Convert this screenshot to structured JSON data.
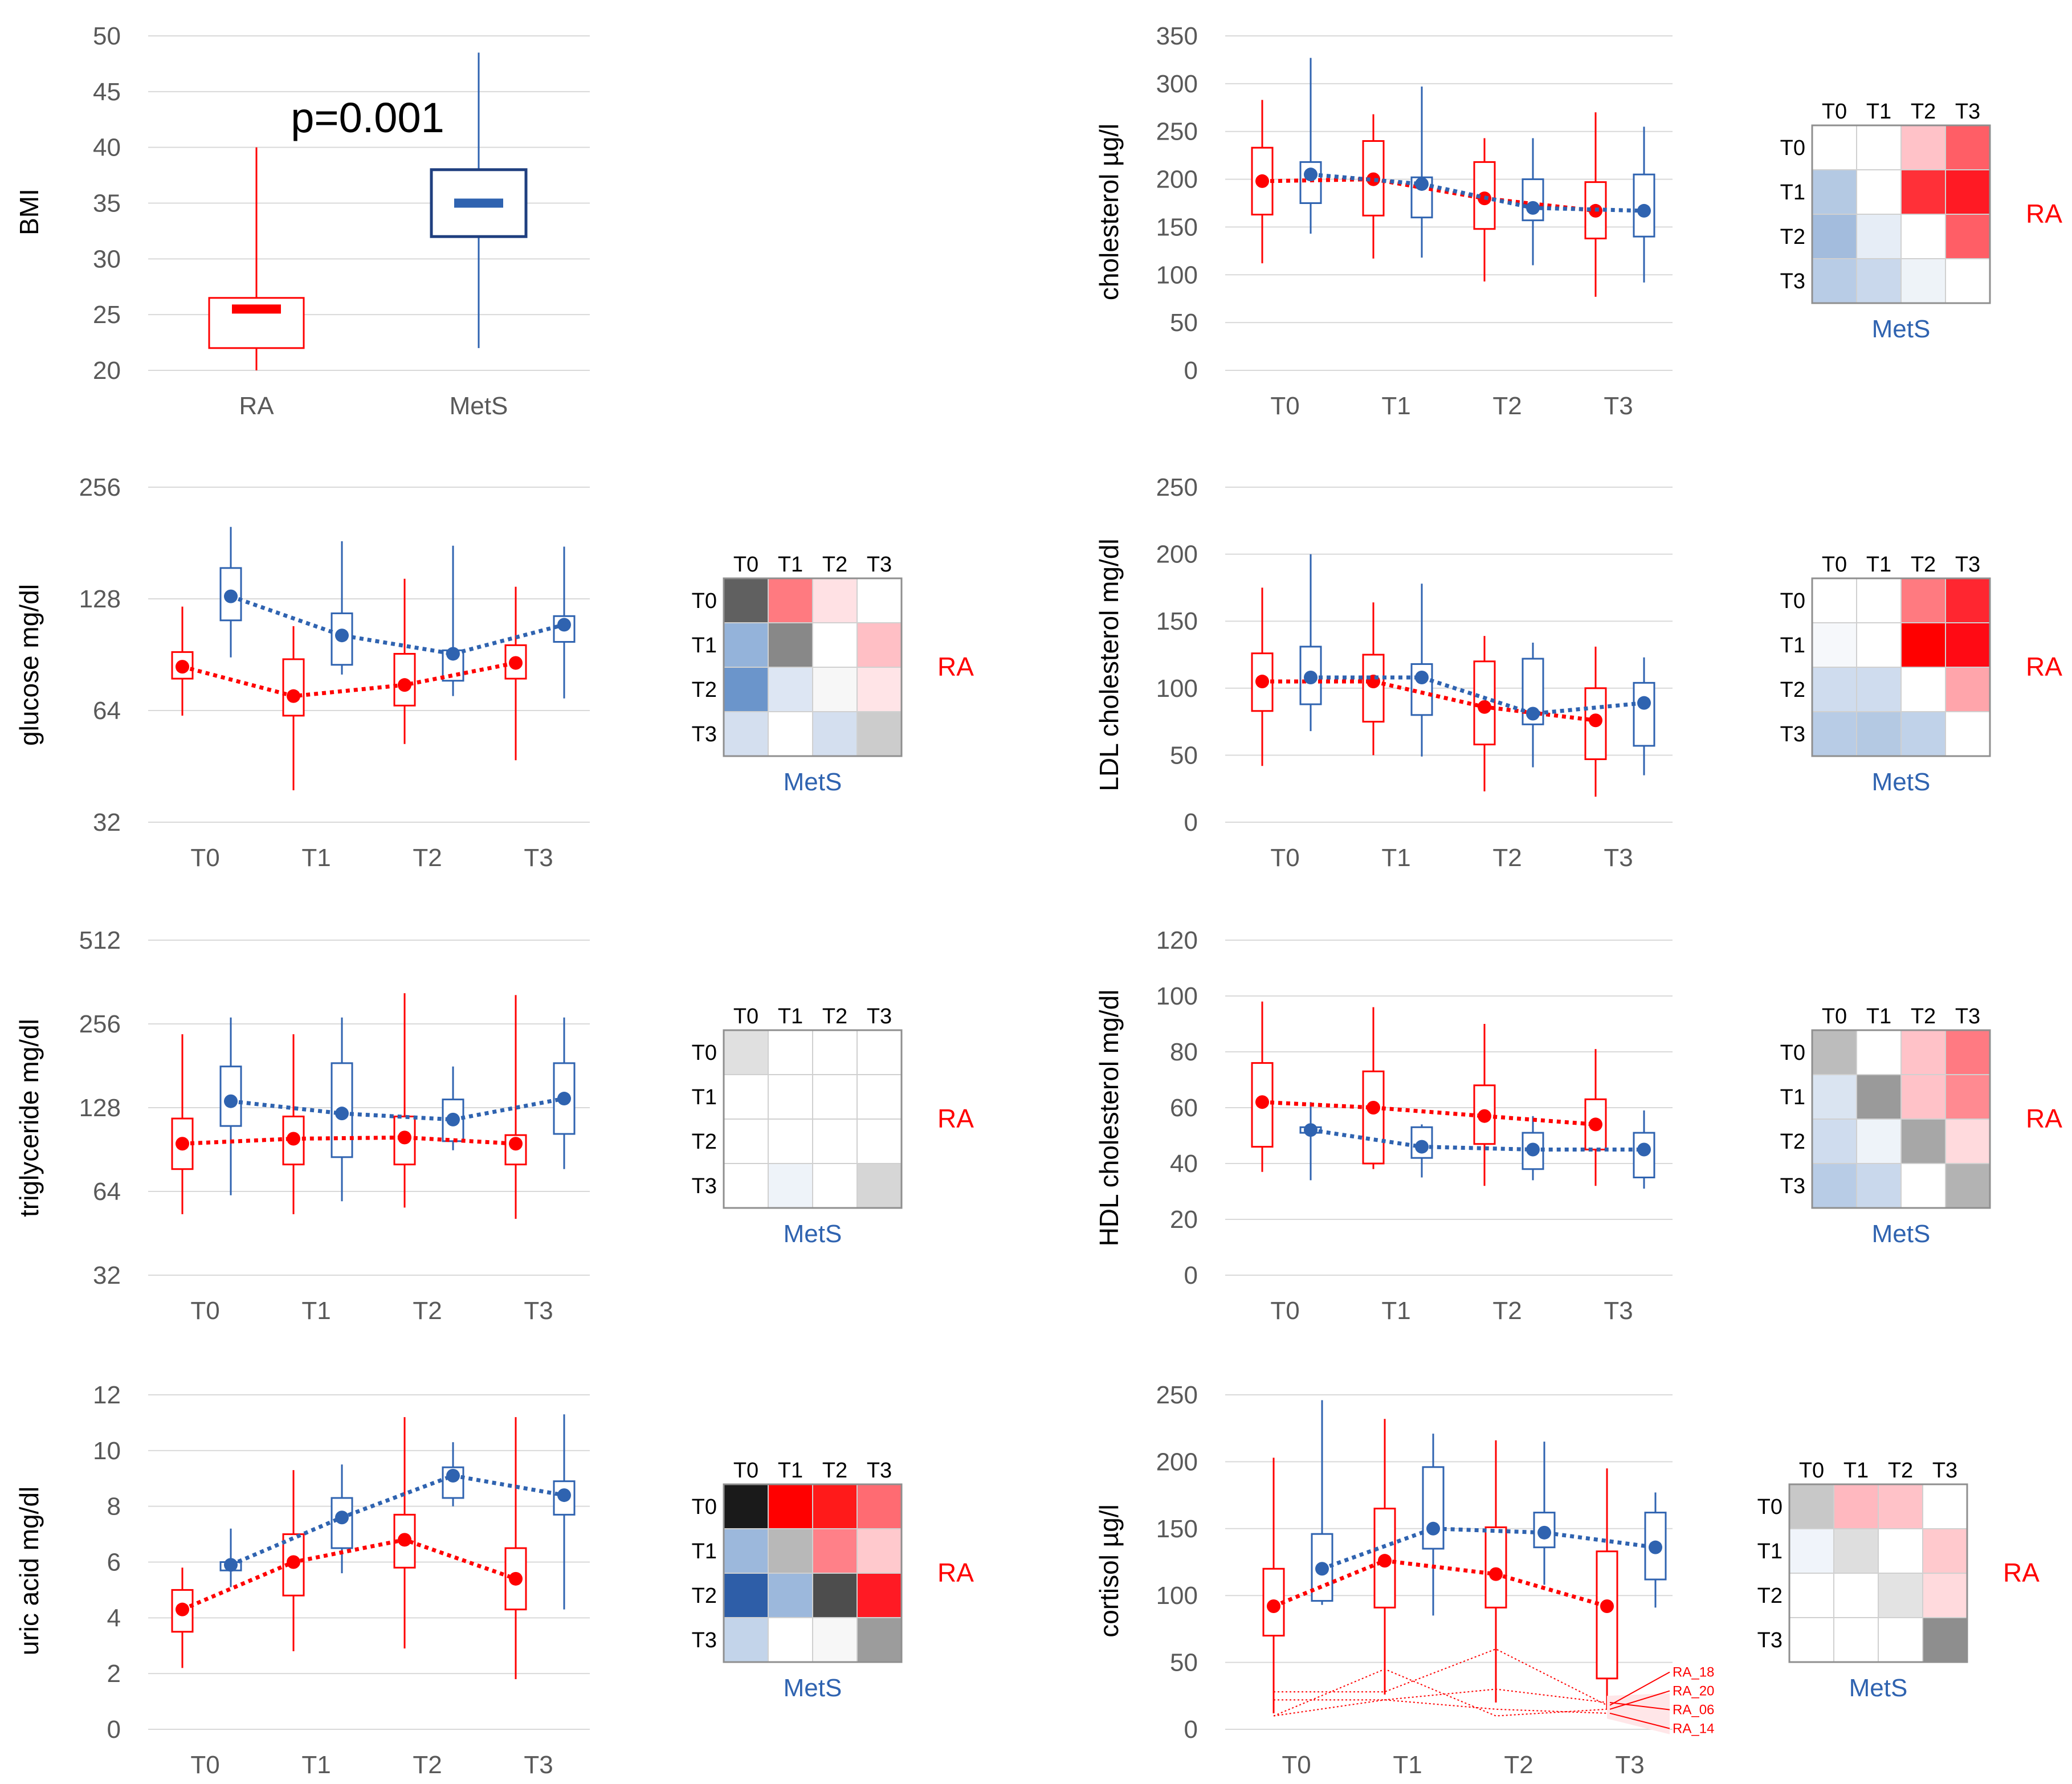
{
  "colors": {
    "ra": "#ff0000",
    "mets": "#2f63b0",
    "mets_dark": "#1f3f7f",
    "grid": "#d9d9d9",
    "tick_text": "#595959"
  },
  "chart_data": [
    {
      "id": "bmi",
      "type": "box",
      "ylabel": "BMI",
      "scale": "linear",
      "ylim": [
        20,
        50
      ],
      "yticks": [
        20,
        25,
        30,
        35,
        40,
        45,
        50
      ],
      "categories": [
        "RA",
        "MetS"
      ],
      "annotation": "p=0.001",
      "boxes": [
        {
          "group": "RA",
          "min": 20,
          "q1": 22,
          "median": 25.5,
          "q3": 26.5,
          "max": 40
        },
        {
          "group": "MetS",
          "min": 22,
          "q1": 32,
          "median": 35,
          "q3": 38,
          "max": 48.5
        }
      ]
    },
    {
      "id": "cholesterol",
      "type": "box-line",
      "ylabel": "cholesterol µg/l",
      "scale": "linear",
      "ylim": [
        0,
        350
      ],
      "yticks": [
        0,
        50,
        100,
        150,
        200,
        250,
        300,
        350
      ],
      "categories": [
        "T0",
        "T1",
        "T2",
        "T3"
      ],
      "series": [
        {
          "name": "RA",
          "mean": [
            198,
            200,
            180,
            167
          ],
          "q1": [
            163,
            162,
            148,
            138
          ],
          "q3": [
            233,
            240,
            218,
            197
          ],
          "min": [
            112,
            117,
            93,
            77
          ],
          "max": [
            283,
            268,
            243,
            270
          ]
        },
        {
          "name": "MetS",
          "mean": [
            205,
            195,
            170,
            167
          ],
          "q1": [
            175,
            160,
            157,
            140
          ],
          "q3": [
            218,
            202,
            200,
            205
          ],
          "min": [
            143,
            118,
            110,
            92
          ],
          "max": [
            327,
            297,
            243,
            255
          ]
        }
      ],
      "heatmap": {
        "cols": [
          "T0",
          "T1",
          "T2",
          "T3"
        ],
        "rows": [
          "T0",
          "T1",
          "T2",
          "T3"
        ],
        "row_label": "RA",
        "col_label": "MetS",
        "cells": [
          [
            "#ffffff",
            "#ffffff",
            "#ffc2c8",
            "#ff5e66"
          ],
          [
            "#b4c9e3",
            "#ffffff",
            "#ff3038",
            "#ff1a24"
          ],
          [
            "#a3bcdd",
            "#e6edf6",
            "#ffffff",
            "#ff5e66"
          ],
          [
            "#b8cce6",
            "#c9d8ec",
            "#eef3f8",
            "#ffffff"
          ]
        ]
      }
    },
    {
      "id": "glucose",
      "type": "box-line",
      "ylabel": "glucose mg/dl",
      "scale": "log2",
      "ylim": [
        32,
        256
      ],
      "yticks": [
        32,
        64,
        128,
        256
      ],
      "categories": [
        "T0",
        "T1",
        "T2",
        "T3"
      ],
      "series": [
        {
          "name": "RA",
          "mean": [
            84,
            70,
            75,
            86
          ],
          "q1": [
            78,
            62,
            66,
            78
          ],
          "q3": [
            92,
            88,
            91,
            96
          ],
          "min": [
            62,
            39,
            52,
            47
          ],
          "max": [
            122,
            108,
            145,
            138
          ]
        },
        {
          "name": "MetS",
          "mean": [
            130,
            102,
            91,
            109
          ],
          "q1": [
            112,
            85,
            77,
            98
          ],
          "q3": [
            155,
            117,
            93,
            115
          ],
          "min": [
            89,
            80,
            70,
            69
          ],
          "max": [
            200,
            183,
            178,
            177
          ]
        }
      ],
      "heatmap": {
        "cols": [
          "T0",
          "T1",
          "T2",
          "T3"
        ],
        "rows": [
          "T0",
          "T1",
          "T2",
          "T3"
        ],
        "row_label": "RA",
        "col_label": "MetS",
        "cells": [
          [
            "#606060",
            "#ff7a80",
            "#ffe1e4",
            "#ffffff"
          ],
          [
            "#94b3da",
            "#888888",
            "#ffffff",
            "#ffbfc5"
          ],
          [
            "#6b95cb",
            "#dde6f3",
            "#f7f7f7",
            "#ffe4e7"
          ],
          [
            "#d4dfef",
            "#ffffff",
            "#d4dfef",
            "#cccccc"
          ]
        ]
      }
    },
    {
      "id": "ldl",
      "type": "box-line",
      "ylabel": "LDL cholesterol mg/dl",
      "scale": "linear",
      "ylim": [
        0,
        250
      ],
      "yticks": [
        0,
        50,
        100,
        150,
        200,
        250
      ],
      "categories": [
        "T0",
        "T1",
        "T2",
        "T3"
      ],
      "series": [
        {
          "name": "RA",
          "mean": [
            105,
            105,
            86,
            76
          ],
          "q1": [
            83,
            75,
            58,
            47
          ],
          "q3": [
            126,
            125,
            120,
            100
          ],
          "min": [
            42,
            50,
            23,
            19
          ],
          "max": [
            175,
            164,
            139,
            131
          ]
        },
        {
          "name": "MetS",
          "mean": [
            108,
            108,
            81,
            89
          ],
          "q1": [
            88,
            80,
            73,
            57
          ],
          "q3": [
            131,
            118,
            122,
            104
          ],
          "min": [
            68,
            49,
            41,
            35
          ],
          "max": [
            200,
            178,
            134,
            123
          ]
        }
      ],
      "heatmap": {
        "cols": [
          "T0",
          "T1",
          "T2",
          "T3"
        ],
        "rows": [
          "T0",
          "T1",
          "T2",
          "T3"
        ],
        "row_label": "RA",
        "col_label": "MetS",
        "cells": [
          [
            "#ffffff",
            "#ffffff",
            "#ff7a80",
            "#ff2630"
          ],
          [
            "#f6f8fb",
            "#ffffff",
            "#ff0000",
            "#ff0a14"
          ],
          [
            "#cfdcee",
            "#cfdcee",
            "#ffffff",
            "#ffa5ab"
          ],
          [
            "#b8cce6",
            "#b4c9e3",
            "#c0d2e9",
            "#ffffff"
          ]
        ]
      }
    },
    {
      "id": "triglyceride",
      "type": "box-line",
      "ylabel": "triglyceride mg/dl",
      "scale": "log2",
      "ylim": [
        32,
        512
      ],
      "yticks": [
        32,
        64,
        128,
        256,
        512
      ],
      "categories": [
        "T0",
        "T1",
        "T2",
        "T3"
      ],
      "series": [
        {
          "name": "RA",
          "mean": [
            95,
            99,
            100,
            95
          ],
          "q1": [
            77,
            80,
            80,
            80
          ],
          "q3": [
            117,
            119,
            119,
            102
          ],
          "min": [
            53,
            53,
            56,
            51
          ],
          "max": [
            235,
            235,
            330,
            325
          ]
        },
        {
          "name": "MetS",
          "mean": [
            135,
            122,
            116,
            138
          ],
          "q1": [
            110,
            85,
            97,
            103
          ],
          "q3": [
            180,
            185,
            137,
            185
          ],
          "min": [
            62,
            59,
            90,
            77
          ],
          "max": [
            270,
            270,
            180,
            270
          ]
        }
      ],
      "heatmap": {
        "cols": [
          "T0",
          "T1",
          "T2",
          "T3"
        ],
        "rows": [
          "T0",
          "T1",
          "T2",
          "T3"
        ],
        "row_label": "RA",
        "col_label": "MetS",
        "cells": [
          [
            "#e0e0e0",
            "#ffffff",
            "#ffffff",
            "#ffffff"
          ],
          [
            "#ffffff",
            "#ffffff",
            "#ffffff",
            "#ffffff"
          ],
          [
            "#ffffff",
            "#ffffff",
            "#ffffff",
            "#ffffff"
          ],
          [
            "#ffffff",
            "#eef3f9",
            "#ffffff",
            "#d6d6d6"
          ]
        ]
      }
    },
    {
      "id": "hdl",
      "type": "box-line",
      "ylabel": "HDL cholesterol mg/dl",
      "scale": "linear",
      "ylim": [
        0,
        120
      ],
      "yticks": [
        0,
        20,
        40,
        60,
        80,
        100,
        120
      ],
      "categories": [
        "T0",
        "T1",
        "T2",
        "T3"
      ],
      "series": [
        {
          "name": "RA",
          "mean": [
            62,
            60,
            57,
            54
          ],
          "q1": [
            46,
            40,
            47,
            45
          ],
          "q3": [
            76,
            73,
            68,
            63
          ],
          "min": [
            37,
            38,
            32,
            32
          ],
          "max": [
            98,
            96,
            90,
            81
          ]
        },
        {
          "name": "MetS",
          "mean": [
            52,
            46,
            45,
            45
          ],
          "q1": [
            51,
            42,
            38,
            35
          ],
          "q3": [
            53,
            53,
            51,
            51
          ],
          "min": [
            34,
            35,
            34,
            31
          ],
          "max": [
            62,
            54,
            57,
            59
          ]
        }
      ],
      "heatmap": {
        "cols": [
          "T0",
          "T1",
          "T2",
          "T3"
        ],
        "rows": [
          "T0",
          "T1",
          "T2",
          "T3"
        ],
        "row_label": "RA",
        "col_label": "MetS",
        "cells": [
          [
            "#bcbcbc",
            "#ffffff",
            "#ffc2c8",
            "#ff7a82"
          ],
          [
            "#dae4f1",
            "#9a9a9a",
            "#ffc2c8",
            "#ff8a91"
          ],
          [
            "#cfdcee",
            "#eef3f9",
            "#a7a7a7",
            "#ffdadd"
          ],
          [
            "#b8cce6",
            "#c9d8ec",
            "#ffffff",
            "#b3b3b3"
          ]
        ]
      }
    },
    {
      "id": "uric",
      "type": "box-line",
      "ylabel": "uric acid mg/dl",
      "scale": "linear",
      "ylim": [
        0,
        12
      ],
      "yticks": [
        0,
        2,
        4,
        6,
        8,
        10,
        12
      ],
      "categories": [
        "T0",
        "T1",
        "T2",
        "T3"
      ],
      "series": [
        {
          "name": "RA",
          "mean": [
            4.3,
            6.0,
            6.8,
            5.4
          ],
          "q1": [
            3.5,
            4.8,
            5.8,
            4.3
          ],
          "q3": [
            5.0,
            7.0,
            7.7,
            6.5
          ],
          "min": [
            2.2,
            2.8,
            2.9,
            1.8
          ],
          "max": [
            5.8,
            9.3,
            11.2,
            11.2
          ]
        },
        {
          "name": "MetS",
          "mean": [
            5.9,
            7.6,
            9.1,
            8.4
          ],
          "q1": [
            5.7,
            6.5,
            8.3,
            7.7
          ],
          "q3": [
            6.0,
            8.3,
            9.4,
            8.9
          ],
          "min": [
            5.1,
            5.6,
            8.0,
            4.3
          ],
          "max": [
            7.2,
            9.5,
            10.3,
            11.3
          ]
        }
      ],
      "heatmap": {
        "cols": [
          "T0",
          "T1",
          "T2",
          "T3"
        ],
        "rows": [
          "T0",
          "T1",
          "T2",
          "T3"
        ],
        "row_label": "RA",
        "col_label": "MetS",
        "cells": [
          [
            "#1a1a1a",
            "#ff0000",
            "#ff1a1a",
            "#ff6b72"
          ],
          [
            "#9cb8dc",
            "#b8b8b8",
            "#ff8088",
            "#ffc9cd"
          ],
          [
            "#2e5ea8",
            "#9cb8dc",
            "#4d4d4d",
            "#ff1a24"
          ],
          [
            "#c3d4ea",
            "#ffffff",
            "#f7f7f7",
            "#9c9c9c"
          ]
        ]
      }
    },
    {
      "id": "cortisol",
      "type": "box-line",
      "ylabel": "cortisol µg/l",
      "scale": "linear",
      "ylim": [
        0,
        250
      ],
      "yticks": [
        0,
        50,
        100,
        150,
        200,
        250
      ],
      "categories": [
        "T0",
        "T1",
        "T2",
        "T3"
      ],
      "series": [
        {
          "name": "RA",
          "mean": [
            92,
            126,
            116,
            92
          ],
          "q1": [
            70,
            91,
            91,
            38
          ],
          "q3": [
            120,
            165,
            151,
            133
          ],
          "min": [
            12,
            26,
            20,
            15
          ],
          "max": [
            203,
            232,
            216,
            195
          ]
        },
        {
          "name": "MetS",
          "mean": [
            120,
            150,
            147,
            136
          ],
          "q1": [
            96,
            135,
            136,
            112
          ],
          "q3": [
            146,
            196,
            162,
            162
          ],
          "min": [
            93,
            85,
            108,
            91
          ],
          "max": [
            246,
            221,
            215,
            177
          ]
        }
      ],
      "individuals": [
        {
          "name": "RA_18",
          "values": [
            28,
            28,
            60,
            18
          ]
        },
        {
          "name": "RA_20",
          "values": [
            10,
            45,
            10,
            15
          ]
        },
        {
          "name": "RA_06",
          "values": [
            10,
            22,
            30,
            20
          ]
        },
        {
          "name": "RA_14",
          "values": [
            22,
            22,
            15,
            12
          ]
        }
      ],
      "heatmap": {
        "cols": [
          "T0",
          "T1",
          "T2",
          "T3"
        ],
        "rows": [
          "T0",
          "T1",
          "T2",
          "T3"
        ],
        "row_label": "RA",
        "col_label": "MetS",
        "cells": [
          [
            "#c8c8c8",
            "#ffb8bf",
            "#ffc2c8",
            "#ffffff"
          ],
          [
            "#f0f4fa",
            "#dedede",
            "#ffffff",
            "#ffc9cd"
          ],
          [
            "#ffffff",
            "#ffffff",
            "#e3e3e3",
            "#ffdadd"
          ],
          [
            "#ffffff",
            "#ffffff",
            "#ffffff",
            "#8e8e8e"
          ]
        ]
      }
    }
  ]
}
